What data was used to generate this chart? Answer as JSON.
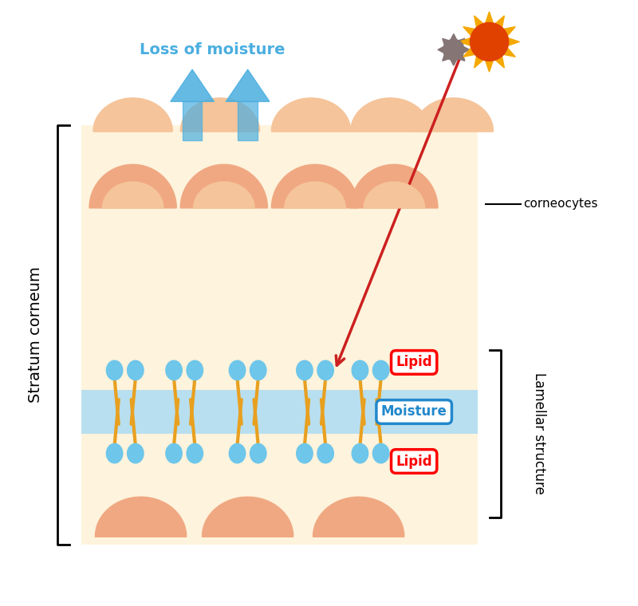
{
  "bg_color": "#FFFFFF",
  "skin_bg": "#FEF3DC",
  "corneocyte_top_color": "#F5C49A",
  "corneocyte_inner_color": "#F0A882",
  "lipid_ball_color": "#6EC6EA",
  "lipid_tail_color": "#E8A020",
  "moisture_band_color": "#B8DFF0",
  "arrow_color": "#4AAEE0",
  "red_arrow_color": "#CC2020",
  "gray_star_color": "#888080",
  "sun_outer_color": "#F5A800",
  "sun_inner_color": "#E04000",
  "text_loss": "Loss of moisture",
  "text_stratum": "Stratum corneum",
  "text_lamellar": "Lamellar structure",
  "text_corneocytes": "corneocytes",
  "text_lipid": "Lipid",
  "text_moisture": "Moisture"
}
